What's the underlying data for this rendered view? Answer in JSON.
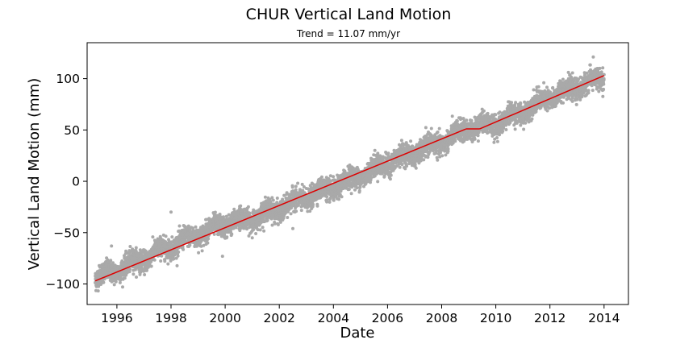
{
  "chart_data": {
    "type": "scatter",
    "title": "CHUR Vertical Land Motion",
    "subtitle": "Trend = 11.07 mm/yr",
    "xlabel": "Date",
    "ylabel": "Vertical Land Motion (mm)",
    "xlim": [
      1994.9,
      2014.9
    ],
    "ylim": [
      -120,
      135
    ],
    "x_ticks": [
      1996,
      1998,
      2000,
      2002,
      2004,
      2006,
      2008,
      2010,
      2012,
      2014
    ],
    "x_tick_labels": [
      "1996",
      "1998",
      "2000",
      "2002",
      "2004",
      "2006",
      "2008",
      "2010",
      "2012",
      "2014"
    ],
    "y_ticks": [
      -100,
      -50,
      0,
      50,
      100
    ],
    "y_tick_labels": [
      "−100",
      "−50",
      "0",
      "50",
      "100"
    ],
    "grid": false,
    "legend": "none",
    "series": [
      {
        "kind": "points",
        "color": "#a9a9a9",
        "anchors": {
          "x": [
            1995.2,
            1996.0,
            1997.0,
            1998.0,
            1999.0,
            2000.0,
            2001.0,
            2002.0,
            2003.0,
            2004.0,
            2005.0,
            2006.0,
            2007.0,
            2008.0,
            2009.0,
            2010.0,
            2011.0,
            2012.0,
            2013.0,
            2014.0
          ],
          "y": [
            -95,
            -86,
            -75,
            -63,
            -52,
            -41,
            -36,
            -27,
            -15,
            -6,
            6,
            18,
            28,
            38,
            52,
            56,
            68,
            82,
            92,
            101
          ]
        },
        "spread_mm": 5,
        "count": 6500,
        "outliers": [
          {
            "x": 1998.0,
            "y": -30
          },
          {
            "x": 1999.9,
            "y": -73
          },
          {
            "x": 2002.5,
            "y": -46
          },
          {
            "x": 1995.8,
            "y": -63
          },
          {
            "x": 2013.6,
            "y": 121
          }
        ]
      },
      {
        "kind": "trend",
        "color": "#dd0000",
        "segments": [
          {
            "x": [
              1995.2,
              2008.9
            ],
            "y": [
              -97,
              51
            ]
          },
          {
            "x": [
              2008.9,
              2009.4
            ],
            "y": [
              51,
              51
            ]
          },
          {
            "x": [
              2009.4,
              2014.0
            ],
            "y": [
              51,
              103
            ]
          }
        ]
      }
    ]
  }
}
